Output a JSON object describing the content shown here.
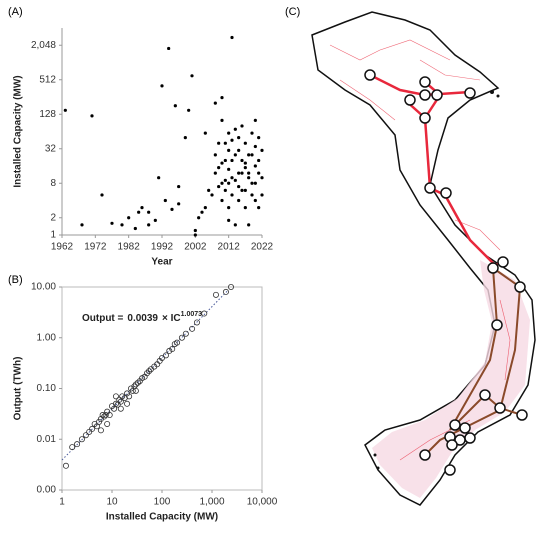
{
  "chart_data": [
    {
      "type": "scatter",
      "panel": "(A)",
      "x_label": "Year",
      "y_label": "Installed Capacity (MW)",
      "yscale": "log",
      "color": "#000000",
      "xlim": [
        1962,
        2022
      ],
      "xticks": [
        1962,
        1972,
        1982,
        1992,
        2002,
        2012,
        2022
      ],
      "ylim": [
        1,
        4096
      ],
      "yticks": [
        1,
        2,
        8,
        32,
        128,
        512,
        {
          "value": 2048,
          "label": "2,048"
        }
      ],
      "x": [
        1963,
        1968,
        1971,
        1974,
        1977,
        1980,
        1982,
        1984,
        1985,
        1986,
        1988,
        1988,
        1990,
        1991,
        1992,
        1993,
        1994,
        1995,
        1996,
        1997,
        1997,
        1999,
        2000,
        2001,
        2002,
        2002,
        2003,
        2004,
        2005,
        2005,
        2006,
        2007,
        2008,
        2008,
        2009,
        2009,
        2010,
        2010,
        2010,
        2011,
        2011,
        2011,
        2012,
        2012,
        2012,
        2012,
        2013,
        2013,
        2013,
        2013,
        2014,
        2014,
        2014,
        2015,
        2015,
        2015,
        2015,
        2016,
        2016,
        2016,
        2017,
        2017,
        2017,
        2017,
        2018,
        2018,
        2018,
        2019,
        2019,
        2019,
        2020,
        2020,
        2020,
        2020,
        2021,
        2021,
        2021,
        2022,
        2022,
        2022,
        2009,
        2010,
        2012,
        2014,
        2016,
        2018,
        2020,
        2011,
        2013,
        2015,
        2017,
        2019,
        2021,
        2008,
        2010,
        2012
      ],
      "y": [
        150,
        1.5,
        120,
        5,
        1.6,
        1.5,
        2,
        1.3,
        2.5,
        3,
        1.5,
        2.5,
        1.8,
        10,
        400,
        4,
        1800,
        2.8,
        180,
        3.5,
        7,
        50,
        150,
        600,
        1.2,
        1,
        2,
        2.5,
        3,
        60,
        6,
        5,
        200,
        12,
        15,
        40,
        100,
        8,
        4,
        40,
        20,
        6,
        8,
        30,
        60,
        14,
        2800,
        20,
        10,
        5,
        1.5,
        25,
        9,
        30,
        12,
        50,
        4,
        12,
        6,
        80,
        6,
        18,
        40,
        3,
        1.5,
        25,
        10,
        25,
        8,
        60,
        8,
        16,
        35,
        4,
        50,
        3,
        20,
        10,
        30,
        5,
        7,
        18,
        3,
        70,
        20,
        12,
        100,
        9,
        45,
        7,
        15,
        5,
        12,
        25,
        250,
        1.8
      ]
    },
    {
      "type": "scatter",
      "panel": "(B)",
      "x_label": "Installed Capacity (MW)",
      "y_label": "Output (TWh)",
      "xscale": "log",
      "yscale": "log",
      "color": "#333333",
      "frame": true,
      "xlim": [
        1,
        10000
      ],
      "xticks": [
        1,
        10,
        100,
        {
          "value": 1000,
          "label": "1,000"
        },
        {
          "value": 10000,
          "label": "10,000"
        }
      ],
      "ylim": [
        0.001,
        10
      ],
      "yticks": [
        {
          "value": 0.001,
          "label": "0.00"
        },
        {
          "value": 0.01,
          "label": "0.01"
        },
        {
          "value": 0.1,
          "label": "0.10"
        },
        {
          "value": 1,
          "label": "1.00"
        },
        {
          "value": 10,
          "label": "10.00"
        }
      ],
      "trend": {
        "text": "Output =",
        "coef": 0.0039,
        "term": "× IC",
        "exp": 1.0073
      },
      "x": [
        1.2,
        1.6,
        2,
        2.5,
        3,
        3.5,
        4,
        4.5,
        5,
        5.5,
        6,
        6.5,
        7,
        7.5,
        8,
        9,
        10,
        11,
        12,
        13,
        14,
        15,
        16,
        18,
        20,
        22,
        24,
        26,
        28,
        30,
        33,
        36,
        40,
        45,
        50,
        55,
        60,
        70,
        80,
        90,
        100,
        120,
        140,
        160,
        180,
        200,
        250,
        300,
        400,
        500,
        700,
        1200,
        1900,
        2400,
        8,
        12,
        20,
        30,
        6,
        15
      ],
      "y": [
        0.003,
        0.007,
        0.008,
        0.01,
        0.012,
        0.014,
        0.016,
        0.02,
        0.018,
        0.022,
        0.025,
        0.03,
        0.028,
        0.03,
        0.035,
        0.03,
        0.045,
        0.04,
        0.05,
        0.048,
        0.06,
        0.055,
        0.07,
        0.065,
        0.08,
        0.07,
        0.1,
        0.09,
        0.11,
        0.12,
        0.13,
        0.14,
        0.16,
        0.17,
        0.2,
        0.22,
        0.24,
        0.27,
        0.3,
        0.35,
        0.4,
        0.45,
        0.55,
        0.6,
        0.75,
        0.8,
        1,
        1.2,
        1.5,
        2,
        3,
        7,
        8,
        10,
        0.02,
        0.07,
        0.05,
        0.09,
        0.015,
        0.04
      ]
    },
    {
      "type": "map",
      "panel": "(C)"
    }
  ]
}
